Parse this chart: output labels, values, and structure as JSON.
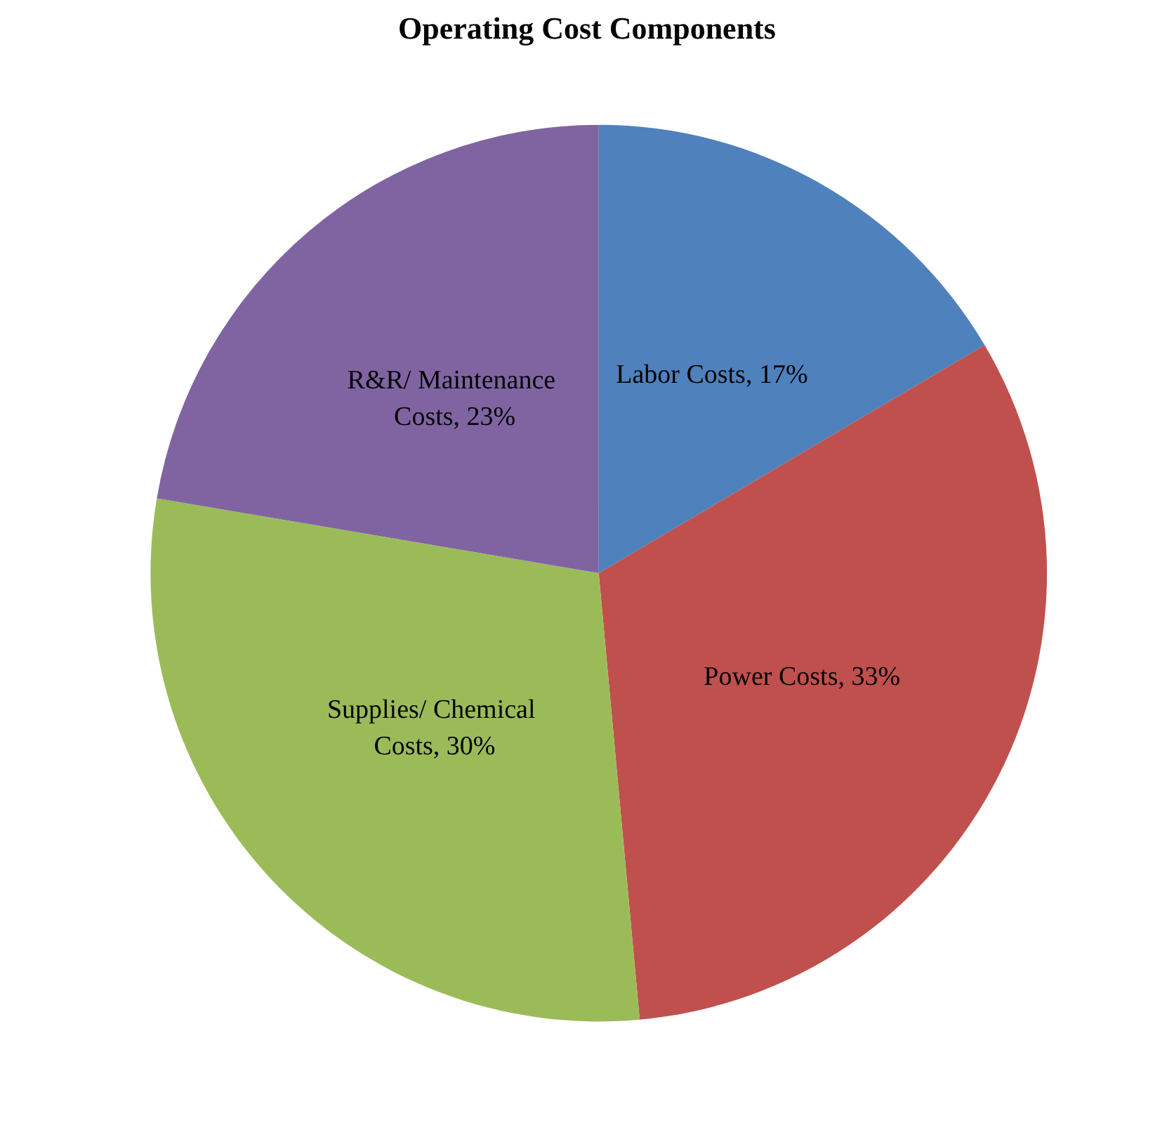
{
  "chart_data": {
    "type": "pie",
    "title": "Operating Cost Components",
    "categories": [
      "Labor Costs",
      "Power Costs",
      "Supplies/ Chemical Costs",
      "R&R/ Maintenance Costs"
    ],
    "values": [
      17,
      33,
      30,
      23
    ],
    "value_labels": [
      "17%",
      "33%",
      "30%",
      "23%"
    ],
    "colors": [
      "#4f81bd",
      "#c0504d",
      "#9bbb59",
      "#8064a2"
    ],
    "legend": false
  }
}
